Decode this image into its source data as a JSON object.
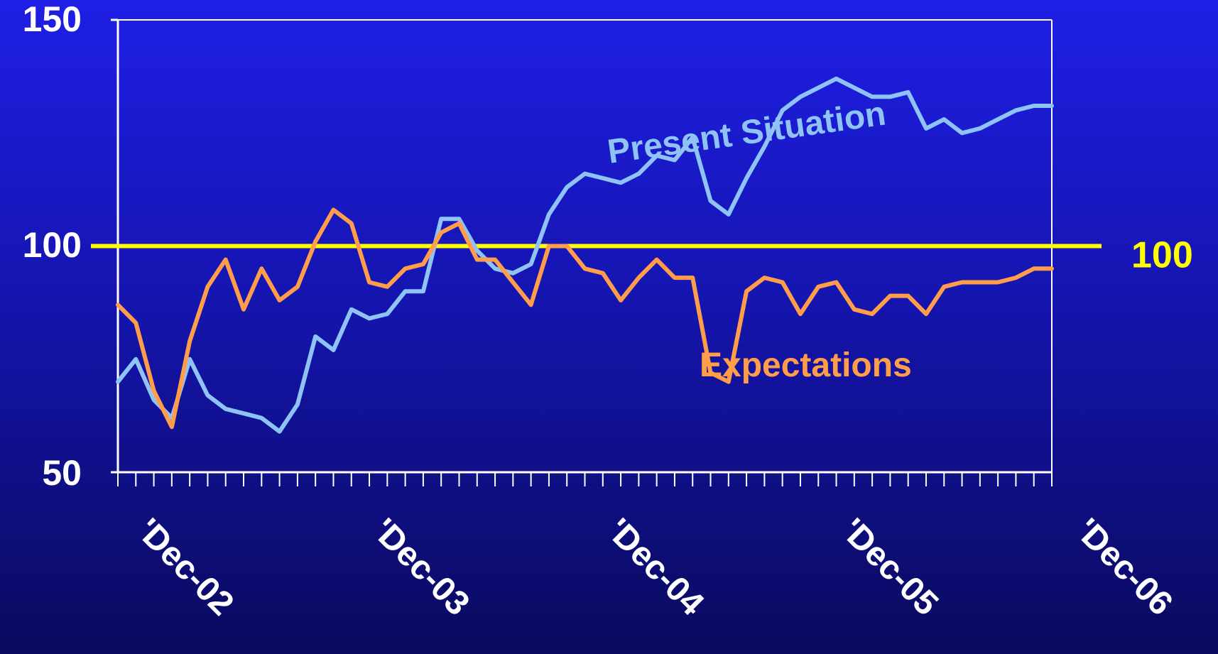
{
  "chart_data": {
    "type": "line",
    "ylim": [
      50,
      150
    ],
    "y_ticks": [
      "50",
      "100",
      "150"
    ],
    "x_tick_labels": [
      "'Dec-02",
      "'Dec-03",
      "'Dec-04",
      "'Dec-05",
      "'Dec-06"
    ],
    "reference_line": {
      "value": 100,
      "label": "100",
      "color": "#ffff00"
    },
    "series": [
      {
        "name": "Present Situation",
        "color": "#8fc3f5",
        "x": [
          "Jul-02",
          "Aug-02",
          "Sep-02",
          "Oct-02",
          "Nov-02",
          "Dec-02",
          "Jan-03",
          "Feb-03",
          "Mar-03",
          "Apr-03",
          "May-03",
          "Jun-03",
          "Jul-03",
          "Aug-03",
          "Sep-03",
          "Oct-03",
          "Nov-03",
          "Dec-03",
          "Jan-04",
          "Feb-04",
          "Mar-04",
          "Apr-04",
          "May-04",
          "Jun-04",
          "Jul-04",
          "Aug-04",
          "Sep-04",
          "Oct-04",
          "Nov-04",
          "Dec-04",
          "Jan-05",
          "Feb-05",
          "Mar-05",
          "Apr-05",
          "May-05",
          "Jun-05",
          "Jul-05",
          "Aug-05",
          "Sep-05",
          "Oct-05",
          "Nov-05",
          "Dec-05",
          "Jan-06",
          "Feb-06",
          "Mar-06",
          "Apr-06",
          "May-06",
          "Jun-06",
          "Jul-06",
          "Aug-06",
          "Sep-06",
          "Oct-06",
          "Nov-06"
        ],
        "values": [
          70,
          75,
          66,
          62,
          75,
          67,
          64,
          63,
          62,
          59,
          65,
          80,
          77,
          86,
          84,
          85,
          90,
          90,
          106,
          106,
          99,
          95,
          94,
          96,
          107,
          113,
          116,
          115,
          114,
          116,
          120,
          119,
          124,
          110,
          107,
          115,
          122,
          130,
          133,
          135,
          137,
          135,
          133,
          133,
          134,
          126,
          128,
          125,
          126,
          128,
          130,
          131,
          131
        ]
      },
      {
        "name": "Expectations",
        "color": "#ff9d4a",
        "x": [
          "Jul-02",
          "Aug-02",
          "Sep-02",
          "Oct-02",
          "Nov-02",
          "Dec-02",
          "Jan-03",
          "Feb-03",
          "Mar-03",
          "Apr-03",
          "May-03",
          "Jun-03",
          "Jul-03",
          "Aug-03",
          "Sep-03",
          "Oct-03",
          "Nov-03",
          "Dec-03",
          "Jan-04",
          "Feb-04",
          "Mar-04",
          "Apr-04",
          "May-04",
          "Jun-04",
          "Jul-04",
          "Aug-04",
          "Sep-04",
          "Oct-04",
          "Nov-04",
          "Dec-04",
          "Jan-05",
          "Feb-05",
          "Mar-05",
          "Apr-05",
          "May-05",
          "Jun-05",
          "Jul-05",
          "Aug-05",
          "Sep-05",
          "Oct-05",
          "Nov-05",
          "Dec-05",
          "Jan-06",
          "Feb-06",
          "Mar-06",
          "Apr-06",
          "May-06",
          "Jun-06",
          "Jul-06",
          "Aug-06",
          "Sep-06",
          "Oct-06",
          "Nov-06"
        ],
        "values": [
          87,
          83,
          68,
          60,
          79,
          91,
          97,
          86,
          95,
          88,
          91,
          101,
          108,
          105,
          92,
          91,
          95,
          96,
          103,
          105,
          97,
          97,
          92,
          87,
          100,
          100,
          95,
          94,
          88,
          93,
          97,
          93,
          93,
          72,
          70,
          90,
          93,
          92,
          85,
          91,
          92,
          86,
          85,
          89,
          89,
          85,
          91,
          92,
          92,
          92,
          93,
          95,
          95
        ]
      }
    ],
    "grid": false,
    "legend": "inline labels"
  }
}
